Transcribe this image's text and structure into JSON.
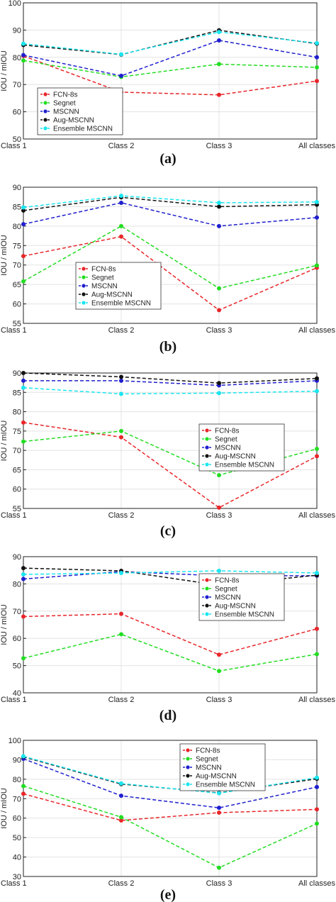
{
  "colors": {
    "FCN-8s": "#e8262a",
    "Segnet": "#22dd22",
    "MSCNN": "#1f1fcf",
    "Aug-MSCNN": "#111111",
    "Ensemble MSCNN": "#19e6f0"
  },
  "chart_data": [
    {
      "type": "line",
      "label": "(a)",
      "categories": [
        "Class 1",
        "Class 2",
        "Class 3",
        "All classes"
      ],
      "ylabel": "IOU / mIOU",
      "ylim": [
        50,
        100
      ],
      "yticks": [
        50,
        60,
        70,
        80,
        90,
        100
      ],
      "legend_position": "lower-left",
      "grid": true,
      "series": [
        {
          "name": "FCN-8s",
          "values": [
            80.5,
            67.2,
            66.2,
            71.3
          ]
        },
        {
          "name": "Segnet",
          "values": [
            78.8,
            72.8,
            77.5,
            76.3
          ]
        },
        {
          "name": "MSCNN",
          "values": [
            80.8,
            73.2,
            86.2,
            80.0
          ]
        },
        {
          "name": "Aug-MSCNN",
          "values": [
            84.5,
            81.0,
            89.9,
            85.0
          ]
        },
        {
          "name": "Ensemble MSCNN",
          "values": [
            85.0,
            81.1,
            89.3,
            85.2
          ]
        }
      ]
    },
    {
      "type": "line",
      "label": "(b)",
      "categories": [
        "Class 1",
        "Class 2",
        "Class 3",
        "All classes"
      ],
      "ylabel": "IOU / mIOU",
      "ylim": [
        55,
        90
      ],
      "yticks": [
        55,
        60,
        65,
        70,
        75,
        80,
        85,
        90
      ],
      "legend_position": "lower-left",
      "grid": true,
      "series": [
        {
          "name": "FCN-8s",
          "values": [
            72.3,
            77.3,
            58.4,
            69.3
          ]
        },
        {
          "name": "Segnet",
          "values": [
            65.8,
            80.0,
            64.0,
            69.9
          ]
        },
        {
          "name": "MSCNN",
          "values": [
            80.5,
            86.0,
            80.0,
            82.2
          ]
        },
        {
          "name": "Aug-MSCNN",
          "values": [
            84.0,
            87.4,
            85.0,
            85.5
          ]
        },
        {
          "name": "Ensemble MSCNN",
          "values": [
            84.8,
            87.8,
            86.0,
            86.2
          ]
        }
      ]
    },
    {
      "type": "line",
      "label": "(c)",
      "categories": [
        "Class 1",
        "Class 2",
        "Class 3",
        "All classes"
      ],
      "ylabel": "IOU / mIOU",
      "ylim": [
        55,
        90
      ],
      "yticks": [
        55,
        60,
        65,
        70,
        75,
        80,
        85,
        90
      ],
      "legend_position": "center-right",
      "grid": true,
      "series": [
        {
          "name": "FCN-8s",
          "values": [
            77.2,
            73.4,
            55.2,
            68.5
          ]
        },
        {
          "name": "Segnet",
          "values": [
            72.3,
            75.0,
            63.6,
            70.4
          ]
        },
        {
          "name": "MSCNN",
          "values": [
            88.0,
            88.0,
            86.8,
            88.0
          ]
        },
        {
          "name": "Aug-MSCNN",
          "values": [
            90.0,
            89.0,
            87.4,
            88.6
          ]
        },
        {
          "name": "Ensemble MSCNN",
          "values": [
            86.2,
            84.6,
            84.8,
            85.3
          ]
        }
      ]
    },
    {
      "type": "line",
      "label": "(d)",
      "categories": [
        "Class 1",
        "Class 2",
        "Class 3",
        "All classes"
      ],
      "ylabel": "IOU / mIOU",
      "ylim": [
        40,
        90
      ],
      "yticks": [
        40,
        50,
        60,
        70,
        80,
        90
      ],
      "legend_position": "center-right",
      "grid": true,
      "series": [
        {
          "name": "FCN-8s",
          "values": [
            68.0,
            69.0,
            54.0,
            63.5
          ]
        },
        {
          "name": "Segnet",
          "values": [
            52.7,
            61.5,
            48.0,
            54.2
          ]
        },
        {
          "name": "MSCNN",
          "values": [
            81.8,
            84.5,
            83.0,
            83.0
          ]
        },
        {
          "name": "Aug-MSCNN",
          "values": [
            85.8,
            84.8,
            79.5,
            83.2
          ]
        },
        {
          "name": "Ensemble MSCNN",
          "values": [
            83.5,
            84.0,
            84.8,
            84.0
          ]
        }
      ]
    },
    {
      "type": "line",
      "label": "(e)",
      "categories": [
        "Class 1",
        "Class 2",
        "Class 3",
        "All classes"
      ],
      "ylabel": "IOU / mIOU",
      "ylim": [
        30,
        100
      ],
      "yticks": [
        30,
        40,
        50,
        60,
        70,
        80,
        90,
        100
      ],
      "legend_position": "top-right",
      "grid": true,
      "series": [
        {
          "name": "FCN-8s",
          "values": [
            72.5,
            58.8,
            62.8,
            64.5
          ]
        },
        {
          "name": "Segnet",
          "values": [
            76.5,
            60.5,
            34.5,
            57.2
          ]
        },
        {
          "name": "MSCNN",
          "values": [
            90.5,
            71.5,
            65.3,
            76.0
          ]
        },
        {
          "name": "Aug-MSCNN",
          "values": [
            91.5,
            77.5,
            73.0,
            80.2
          ]
        },
        {
          "name": "Ensemble MSCNN",
          "values": [
            91.8,
            77.8,
            72.8,
            80.8
          ]
        }
      ]
    }
  ]
}
